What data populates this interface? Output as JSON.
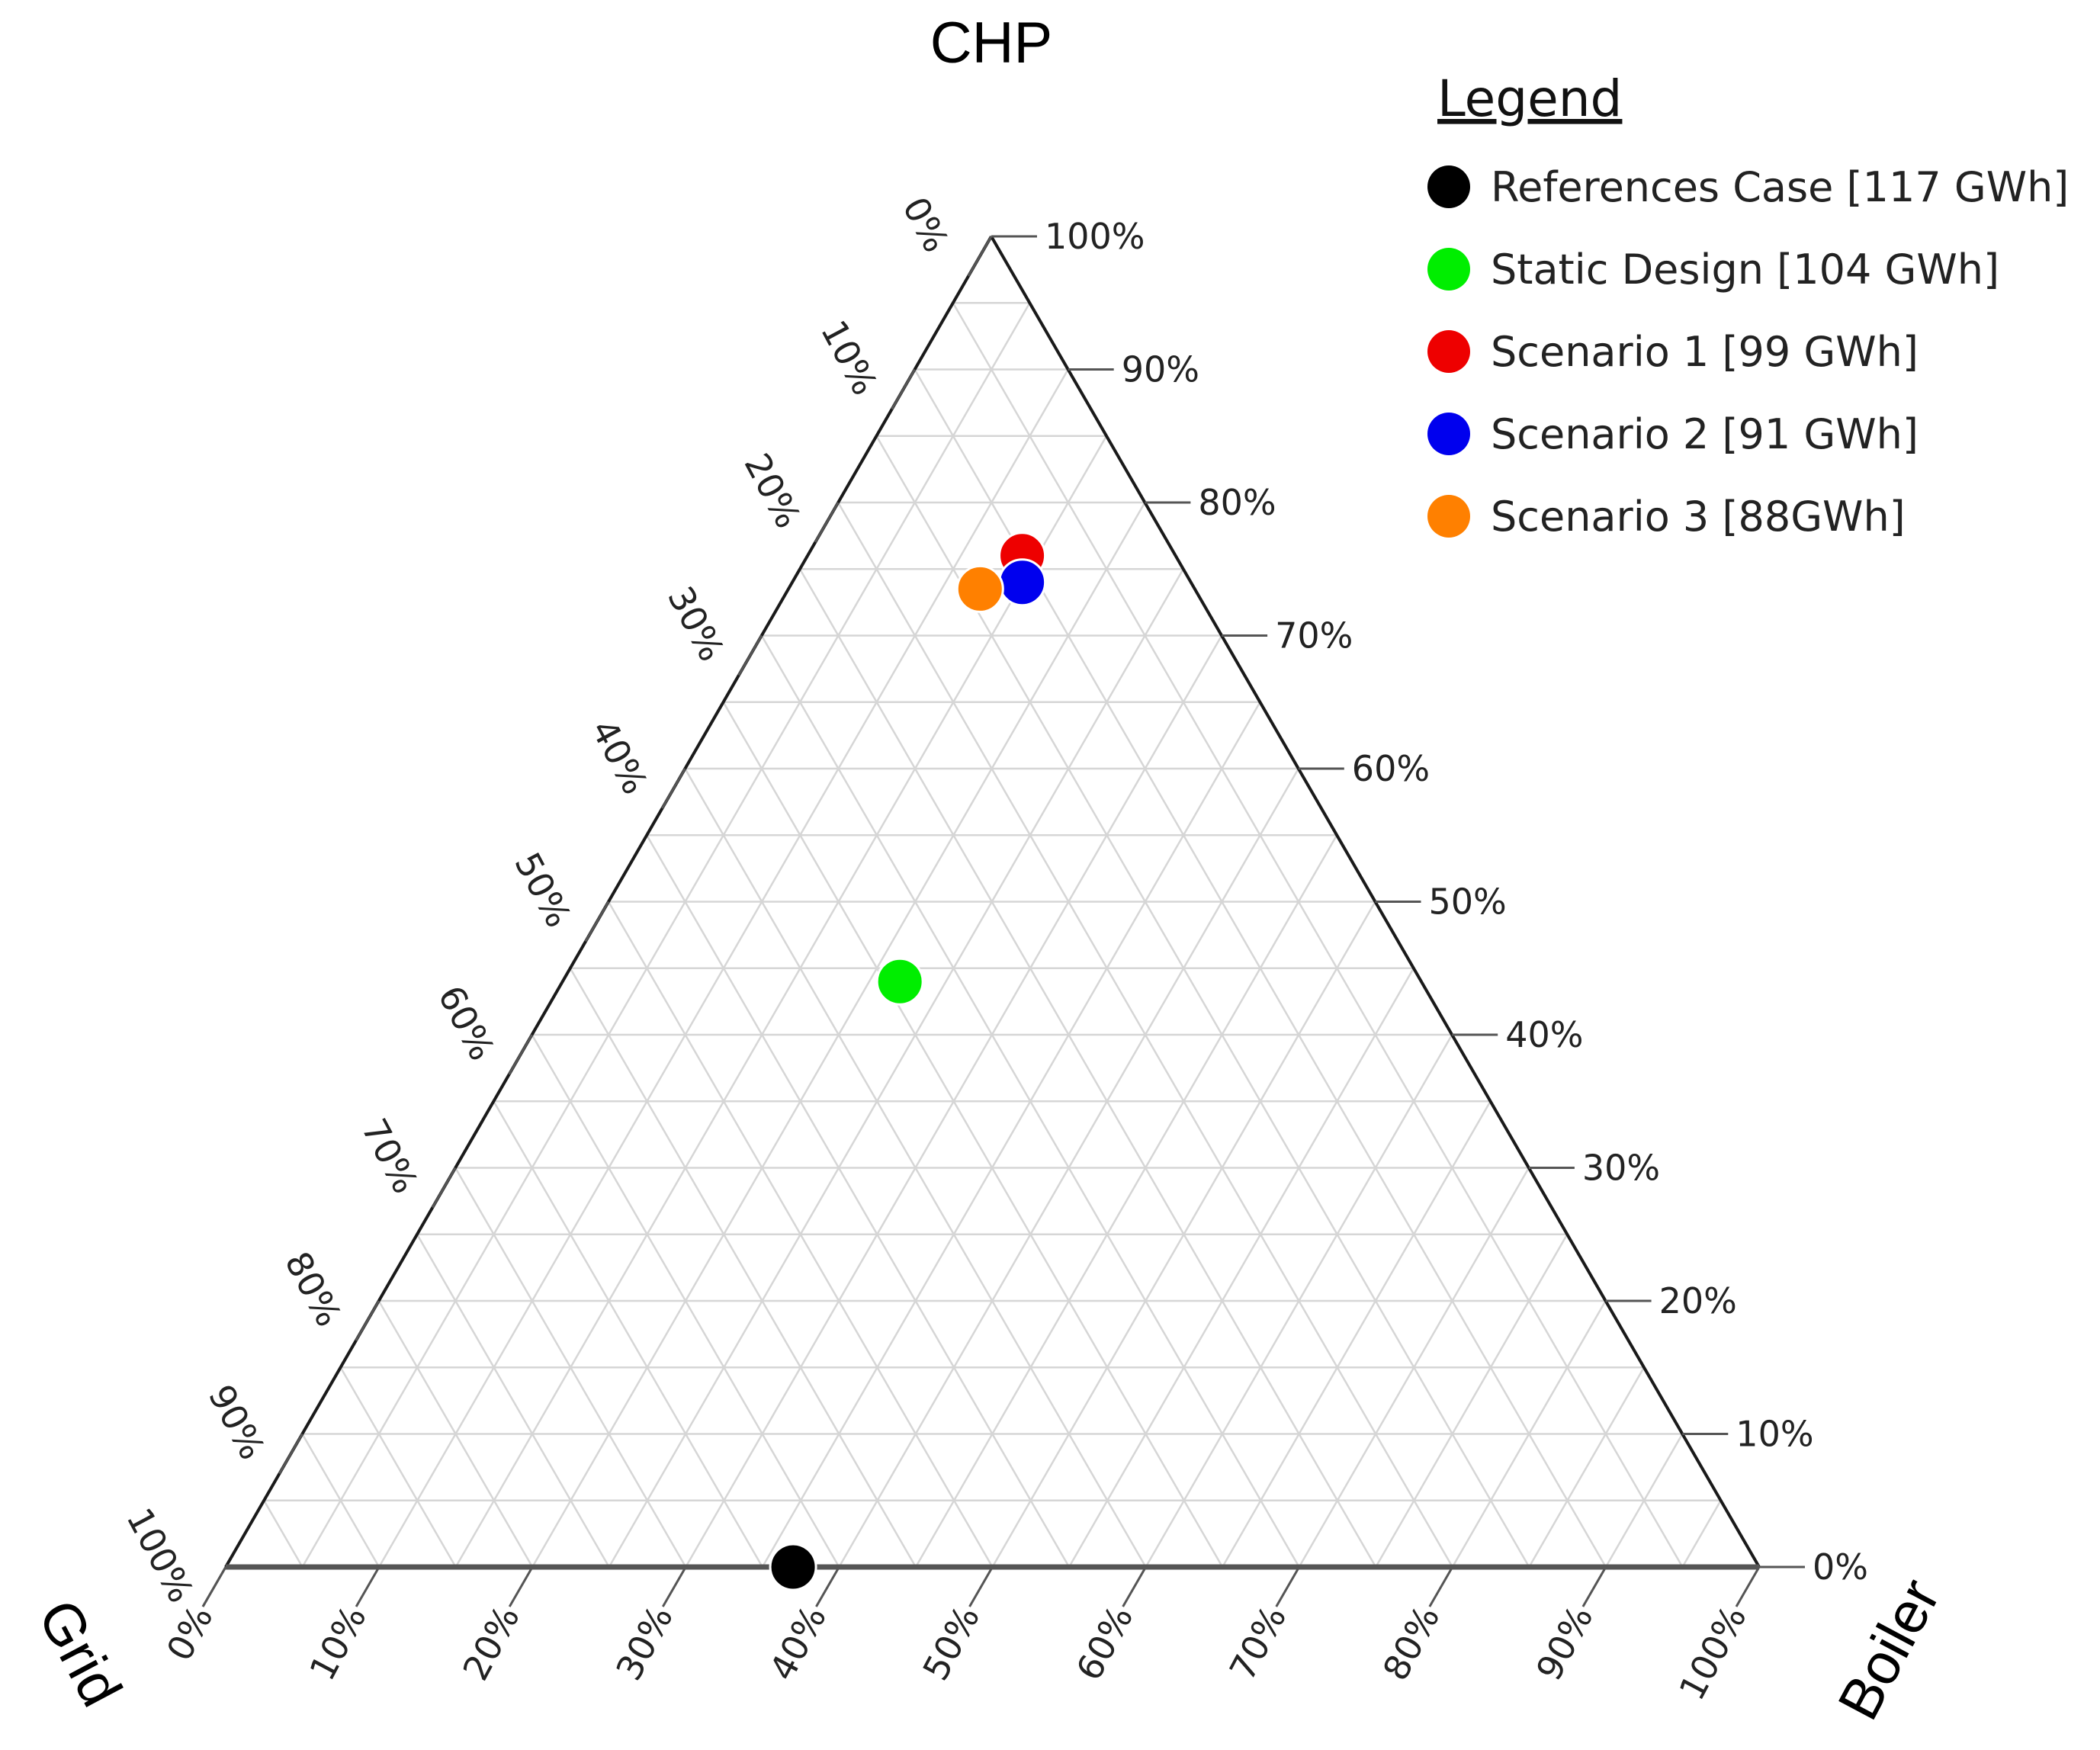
{
  "chart_data": {
    "type": "ternary-scatter",
    "axes": {
      "top": "CHP",
      "left": "Grid",
      "right": "Boiler"
    },
    "ticks": [
      "0%",
      "10%",
      "20%",
      "30%",
      "40%",
      "50%",
      "60%",
      "70%",
      "80%",
      "90%",
      "100%"
    ],
    "grid": true,
    "grid_step": 5,
    "legend": {
      "title": "Legend",
      "position": "top-right",
      "items": [
        {
          "label": "References Case [117 GWh]",
          "color": "#000000"
        },
        {
          "label": "Static Design [104 GWh]",
          "color": "#00ee00"
        },
        {
          "label": "Scenario 1 [99 GWh]",
          "color": "#ee0000"
        },
        {
          "label": "Scenario 2 [91 GWh]",
          "color": "#0000ee"
        },
        {
          "label": "Scenario 3 [88GWh]",
          "color": "#ff8000"
        }
      ]
    },
    "points": [
      {
        "series": "References Case [117 GWh]",
        "chp": 0,
        "grid": 63,
        "boiler": 37,
        "color": "#000000"
      },
      {
        "series": "Static Design [104 GWh]",
        "chp": 44,
        "grid": 34,
        "boiler": 22,
        "color": "#00ee00"
      },
      {
        "series": "Scenario 1 [99 GWh]",
        "chp": 76,
        "grid": 10,
        "boiler": 14,
        "color": "#ee0000"
      },
      {
        "series": "Scenario 2 [91 GWh]",
        "chp": 74,
        "grid": 11,
        "boiler": 15,
        "color": "#0000ee"
      },
      {
        "series": "Scenario 3 [88GWh]",
        "chp": 73.5,
        "grid": 14,
        "boiler": 12.5,
        "color": "#ff8000"
      }
    ]
  }
}
